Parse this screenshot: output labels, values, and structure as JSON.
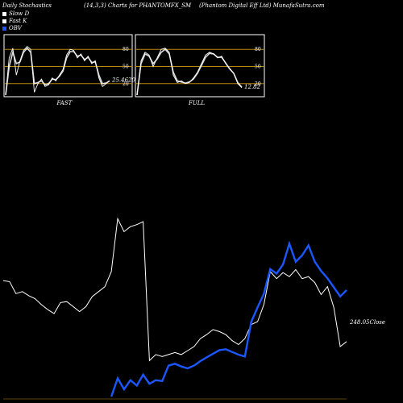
{
  "header": {
    "left": "Daily Stochastics",
    "center": "(14,3,3) Charts for PHANTOMFX_SM",
    "right": "(Phantom Digital Eff Ltd) MunafaSutra.com"
  },
  "legend": [
    {
      "label": "Slow  D",
      "color": "#ffffff"
    },
    {
      "label": "Fast K",
      "color": "#ffffff"
    },
    {
      "label": "OBV",
      "color": "#1a57ff"
    }
  ],
  "colors": {
    "background": "#000000",
    "price": "#ffffff",
    "obv": "#1a57ff",
    "level_line": "#b8860b",
    "panel_border": "#ffffff"
  },
  "chart_data": [
    {
      "type": "line",
      "title": "FAST",
      "ylim": [
        0,
        100
      ],
      "levels": [
        20,
        50,
        80
      ],
      "level_labels": [
        "80",
        "50",
        "20"
      ],
      "value_label": "25.4620",
      "series": [
        {
          "name": "Fast K",
          "values": [
            0,
            65,
            82,
            35,
            60,
            78,
            85,
            80,
            5,
            20,
            28,
            15,
            18,
            30,
            25,
            35,
            45,
            70,
            80,
            78,
            65,
            72,
            60,
            68,
            55,
            60,
            30,
            15,
            20,
            25
          ]
        },
        {
          "name": "Slow  D",
          "values": [
            0,
            50,
            75,
            55,
            58,
            75,
            82,
            75,
            20,
            22,
            25,
            18,
            20,
            28,
            27,
            33,
            42,
            65,
            76,
            76,
            68,
            70,
            62,
            66,
            57,
            58,
            35,
            20,
            21,
            25
          ]
        }
      ]
    },
    {
      "type": "line",
      "title": "FULL",
      "ylim": [
        0,
        100
      ],
      "levels": [
        20,
        50,
        80
      ],
      "level_labels": [
        "80",
        "50",
        "20"
      ],
      "value_label": "12.82",
      "series": [
        {
          "name": "Fast K",
          "values": [
            0,
            60,
            75,
            70,
            50,
            65,
            80,
            82,
            75,
            35,
            22,
            25,
            20,
            22,
            30,
            40,
            55,
            70,
            75,
            72,
            65,
            68,
            55,
            45,
            38,
            20,
            13
          ]
        },
        {
          "name": "Slow  D",
          "values": [
            0,
            55,
            72,
            68,
            55,
            63,
            75,
            80,
            72,
            40,
            25,
            23,
            21,
            23,
            28,
            38,
            52,
            66,
            73,
            72,
            66,
            66,
            56,
            46,
            38,
            22,
            14
          ]
        }
      ]
    },
    {
      "type": "line",
      "price_label": "248.05",
      "price_label_suffix": "Close",
      "series": [
        {
          "name": "Close",
          "values": [
            316,
            315,
            303,
            305,
            301,
            298,
            292,
            287,
            283,
            294,
            295,
            290,
            285,
            290,
            300,
            305,
            310,
            325,
            378,
            365,
            370,
            372,
            375,
            236,
            242,
            240,
            242,
            244,
            242,
            246,
            250,
            258,
            262,
            267,
            265,
            262,
            256,
            252,
            258,
            272,
            275,
            292,
            325,
            318,
            324,
            320,
            327,
            318,
            320,
            314,
            302,
            310,
            289,
            250,
            255
          ]
        },
        {
          "name": "OBV",
          "values": [
            null,
            null,
            null,
            null,
            null,
            null,
            null,
            null,
            null,
            null,
            null,
            null,
            null,
            null,
            null,
            null,
            null,
            0,
            20,
            8,
            18,
            12,
            24,
            14,
            18,
            17,
            34,
            36,
            33,
            31,
            34,
            39,
            43,
            47,
            51,
            52,
            49,
            46,
            44,
            82,
            98,
            113,
            140,
            135,
            145,
            168,
            148,
            155,
            166,
            148,
            138,
            130,
            120,
            110,
            117
          ]
        }
      ]
    }
  ]
}
